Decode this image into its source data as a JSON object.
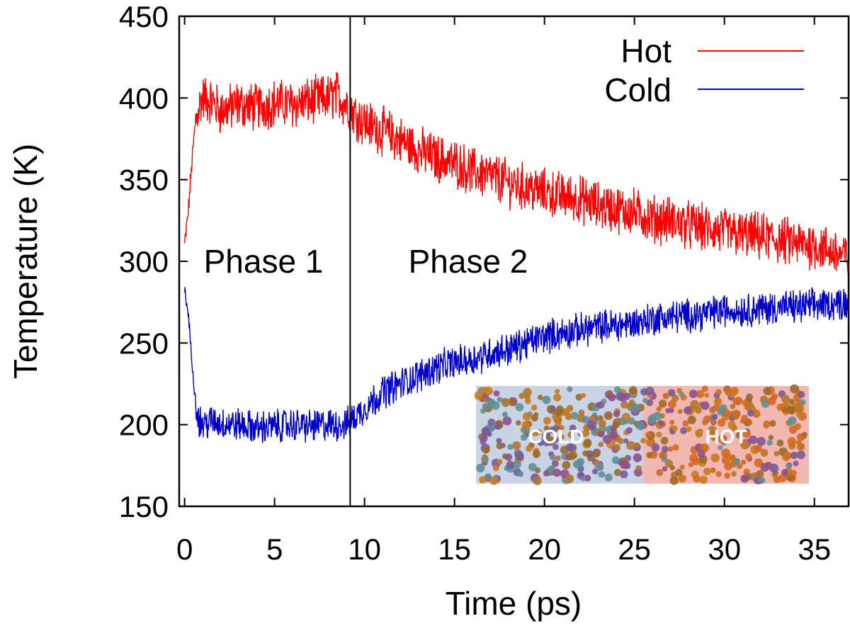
{
  "chart_data": {
    "type": "line",
    "xlabel": "Time (ps)",
    "ylabel": "Temperature (K)",
    "xlim": [
      -0.3,
      36.9
    ],
    "ylim": [
      150,
      450
    ],
    "x_ticks": [
      0,
      5,
      10,
      15,
      20,
      25,
      30,
      35
    ],
    "y_ticks": [
      150,
      200,
      250,
      300,
      350,
      400,
      450
    ],
    "grid": false,
    "legend_position": "top-right",
    "phase_boundary_x": 9.2,
    "annotations": [
      {
        "text": "Phase 1",
        "x": 4.8,
        "y": 300
      },
      {
        "text": "Phase 2",
        "x": 15.8,
        "y": 300
      }
    ],
    "inset": {
      "labels": [
        "COLD",
        "HOT"
      ],
      "region_colors": [
        "#c8d3e6",
        "#f1b8b2"
      ]
    },
    "series": [
      {
        "name": "Hot",
        "color": "#ff0000",
        "x": [
          0,
          0.2,
          0.4,
          0.6,
          0.8,
          1.0,
          1.5,
          2,
          3,
          4,
          5,
          6,
          7,
          8,
          8.5,
          9,
          9.5,
          10,
          11,
          12,
          13,
          14,
          15,
          16,
          17,
          18,
          19,
          20,
          21,
          22,
          23,
          24,
          25,
          26,
          27,
          28,
          29,
          30,
          31,
          32,
          33,
          34,
          35,
          36,
          36.9
        ],
        "values": [
          310,
          330,
          360,
          385,
          395,
          400,
          398,
          392,
          396,
          394,
          397,
          396,
          398,
          400,
          402,
          396,
          390,
          385,
          380,
          374,
          368,
          363,
          360,
          355,
          352,
          348,
          345,
          342,
          340,
          338,
          334,
          332,
          330,
          326,
          325,
          322,
          320,
          318,
          316,
          315,
          313,
          311,
          310,
          306,
          302
        ]
      },
      {
        "name": "Cold",
        "color": "#0000cc",
        "x": [
          0,
          0.2,
          0.4,
          0.6,
          0.8,
          1.0,
          1.5,
          2,
          3,
          4,
          5,
          6,
          7,
          8,
          8.5,
          9,
          9.5,
          10,
          11,
          12,
          13,
          14,
          15,
          16,
          17,
          18,
          19,
          20,
          21,
          22,
          23,
          24,
          25,
          26,
          27,
          28,
          29,
          30,
          31,
          32,
          33,
          34,
          35,
          36,
          36.9
        ],
        "values": [
          282,
          268,
          240,
          215,
          203,
          200,
          202,
          201,
          200,
          198,
          199,
          200,
          199,
          200,
          200,
          200,
          205,
          210,
          220,
          225,
          230,
          235,
          238,
          240,
          244,
          246,
          250,
          254,
          256,
          258,
          260,
          261,
          262,
          265,
          266,
          267,
          268,
          270,
          270,
          271,
          272,
          272,
          273,
          274,
          275
        ]
      }
    ]
  }
}
